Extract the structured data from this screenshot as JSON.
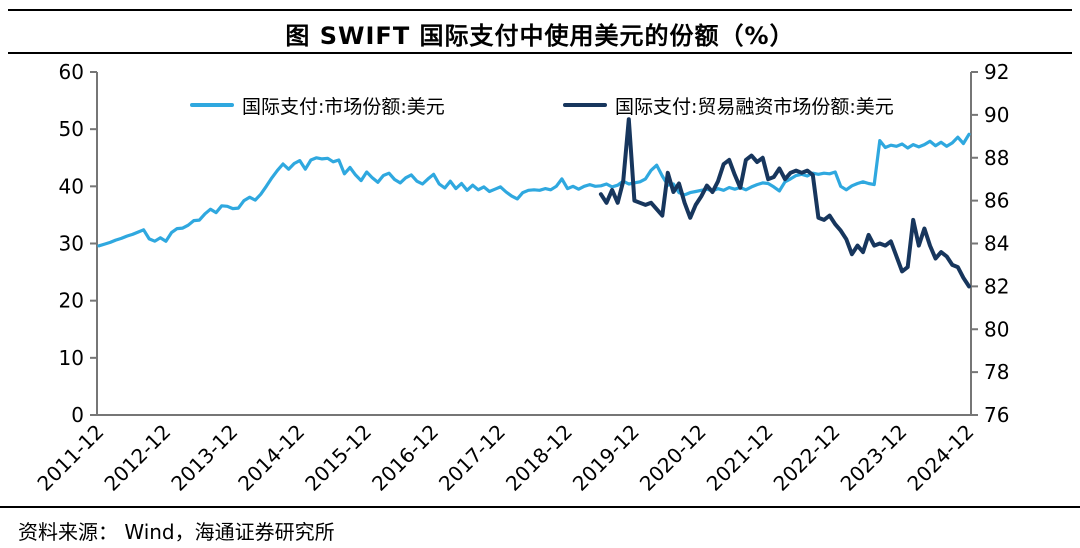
{
  "header": {
    "title": "图  SWIFT 国际支付中使用美元的份额（%）"
  },
  "footer": {
    "source": "资料来源： Wind，海通证券研究所"
  },
  "colors": {
    "blue_series": "#2FA8DF",
    "navy_series": "#17365D",
    "axis": "#767676",
    "text": "#000000"
  },
  "chart_data": {
    "type": "line",
    "title": "图  SWIFT 国际支付中使用美元的份额（%）",
    "x_frequency": "monthly",
    "x_start": "2011-12",
    "x_end": "2024-12",
    "x_tick_labels": [
      "2011-12",
      "2012-12",
      "2013-12",
      "2014-12",
      "2015-12",
      "2016-12",
      "2017-12",
      "2018-12",
      "2019-12",
      "2020-12",
      "2021-12",
      "2022-12",
      "2023-12",
      "2024-12"
    ],
    "grid": false,
    "legend_position": "top",
    "axes": {
      "left": {
        "min": 0,
        "max": 60,
        "tick_step": 10,
        "ticks": [
          0,
          10,
          20,
          30,
          40,
          50,
          60
        ]
      },
      "right": {
        "min": 76,
        "max": 92,
        "tick_step": 2,
        "ticks": [
          76,
          78,
          80,
          82,
          84,
          86,
          88,
          90,
          92
        ]
      }
    },
    "series": [
      {
        "name": "国际支付:市场份额:美元",
        "axis": "left",
        "color": "#2FA8DF",
        "line_width": 3.2,
        "start": "2011-12",
        "start_index": 0,
        "values": [
          29.6,
          29.9,
          30.2,
          30.6,
          30.9,
          31.3,
          31.6,
          32.0,
          32.4,
          30.8,
          30.4,
          31.0,
          30.4,
          31.9,
          32.6,
          32.7,
          33.2,
          34.0,
          34.1,
          35.2,
          36.0,
          35.4,
          36.6,
          36.5,
          36.1,
          36.2,
          37.5,
          38.1,
          37.6,
          38.6,
          40.0,
          41.5,
          42.8,
          43.9,
          43.0,
          44.0,
          44.5,
          43.0,
          44.6,
          45.0,
          44.8,
          44.9,
          44.3,
          44.6,
          42.2,
          43.3,
          42.0,
          41.0,
          42.5,
          41.5,
          40.7,
          41.9,
          42.3,
          41.2,
          40.6,
          41.5,
          42.0,
          40.9,
          40.4,
          41.3,
          42.1,
          40.4,
          39.7,
          40.9,
          39.6,
          40.5,
          39.3,
          40.2,
          39.4,
          39.9,
          39.1,
          39.5,
          39.9,
          39.0,
          38.3,
          37.8,
          38.9,
          39.3,
          39.4,
          39.3,
          39.6,
          39.4,
          40.0,
          41.3,
          39.6,
          40.0,
          39.5,
          40.0,
          40.3,
          40.0,
          40.1,
          40.4,
          39.9,
          40.2,
          40.9,
          40.4,
          40.6,
          40.8,
          41.3,
          42.8,
          43.7,
          41.8,
          40.2,
          40.4,
          38.9,
          38.5,
          38.9,
          39.1,
          39.3,
          39.5,
          39.2,
          39.6,
          39.3,
          39.8,
          39.5,
          39.8,
          39.4,
          39.9,
          40.3,
          40.6,
          40.5,
          39.9,
          39.2,
          40.8,
          41.3,
          41.9,
          42.1,
          41.8,
          42.3,
          42.1,
          42.3,
          42.2,
          42.5,
          40.0,
          39.4,
          40.1,
          40.5,
          40.8,
          40.5,
          40.3,
          48.0,
          46.8,
          47.2,
          47.0,
          47.4,
          46.7,
          47.3,
          46.9,
          47.3,
          47.9,
          47.1,
          47.7,
          47.0,
          47.6,
          48.6,
          47.5,
          49.1
        ]
      },
      {
        "name": "国际支付:贸易融资市场份额:美元",
        "axis": "right",
        "color": "#17365D",
        "line_width": 4,
        "start": "2019-06",
        "start_index": 90,
        "values": [
          86.3,
          85.9,
          86.5,
          85.9,
          86.9,
          89.8,
          86.0,
          85.9,
          85.8,
          85.9,
          85.6,
          85.3,
          87.3,
          86.4,
          86.8,
          85.9,
          85.2,
          85.8,
          86.2,
          86.7,
          86.4,
          86.9,
          87.7,
          87.9,
          87.2,
          86.6,
          87.9,
          88.1,
          87.8,
          88.0,
          87.0,
          87.1,
          87.5,
          87.0,
          87.3,
          87.4,
          87.3,
          87.4,
          87.2,
          85.2,
          85.1,
          85.3,
          84.9,
          84.6,
          84.2,
          83.5,
          83.9,
          83.6,
          84.4,
          83.9,
          84.0,
          83.9,
          84.1,
          83.4,
          82.7,
          82.9,
          85.1,
          83.9,
          84.7,
          83.9,
          83.3,
          83.6,
          83.4,
          83.0,
          82.9,
          82.4,
          82.0
        ]
      }
    ]
  }
}
